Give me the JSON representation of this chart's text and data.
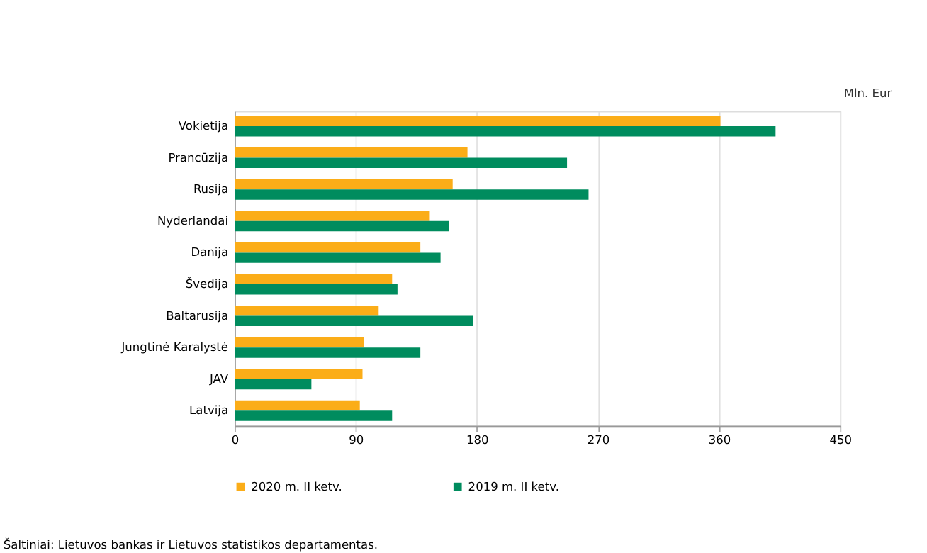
{
  "chart_data": {
    "type": "bar",
    "orientation": "horizontal",
    "xlabel": "Mln. Eur",
    "categories": [
      "Vokietija",
      "Prancūzija",
      "Rusija",
      "Nyderlandai",
      "Danija",
      "Švedija",
      "Baltarusija",
      "Jungtinė Karalystė",
      "JAV",
      "Latvija"
    ],
    "series": [
      {
        "name": "2020 m.  II ketv.",
        "color": "#fbad18",
        "values": [
          361,
          173,
          162,
          145,
          138,
          117,
          107,
          96,
          95,
          93
        ]
      },
      {
        "name": "2019 m.  II ketv.",
        "color": "#008c5e",
        "values": [
          402,
          247,
          263,
          159,
          153,
          121,
          177,
          138,
          57,
          117
        ]
      }
    ],
    "xlim": [
      0,
      450
    ],
    "xticks": [
      0,
      90,
      180,
      270,
      360,
      450
    ],
    "grid": "x",
    "legend": "bottom",
    "annotations": [
      "Šaltiniai: Lietuvos bankas ir Lietuvos statistikos departamentas."
    ]
  }
}
